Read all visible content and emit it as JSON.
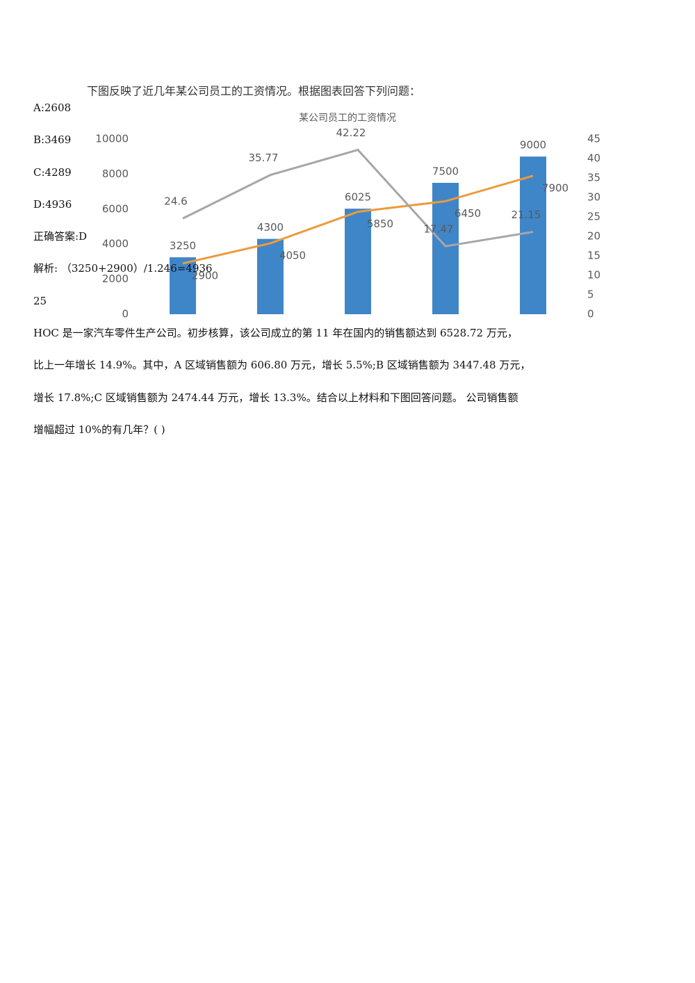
{
  "options": [
    "A:2608",
    "B:3469",
    "C:4289",
    "D:4936"
  ],
  "answer": "正确答案:D",
  "analysis": "解析: （3250+2900）/1.246=4936",
  "question_number": "25",
  "paragraph_lines": [
    "HOC 是一家汽车零件生产公司。初步核算，该公司成立的第 11 年在国内的销售额达到 6528.72 万元，",
    "比上一年增长 14.9%。其中，A 区域销售额为 606.80 万元，增长 5.5%;B 区域销售额为 3447.48 万元，",
    "增长 17.8%;C 区域销售额为 2474.44 万元，增长 13.3%。结合以上材料和下图回答问题。 公司销售额",
    "增幅超过 10%的有几年？( )"
  ],
  "chart_data": {
    "type": "bar-line",
    "header": "下图反映了近几年某公司员工的工资情况。根据图表回答下列问题：",
    "title": "某公司员工的工资情况",
    "categories": [
      null,
      null,
      null,
      null,
      null
    ],
    "series": [
      {
        "type": "bar",
        "color": "#3f86c8",
        "values": [
          3250,
          4300,
          6025,
          7500,
          9000
        ]
      },
      {
        "type": "line",
        "color": "#ed9a3c",
        "values": [
          2900,
          4050,
          5850,
          6450,
          7900
        ]
      },
      {
        "type": "line",
        "color": "#a6a6a6",
        "axis": "y2",
        "values": [
          24.6,
          35.77,
          42.22,
          17.47,
          21.15
        ]
      }
    ],
    "ylim": [
      0,
      10000
    ],
    "yticks": [
      0,
      2000,
      4000,
      6000,
      8000,
      10000
    ],
    "y2lim": [
      0,
      45
    ],
    "y2ticks": [
      0,
      5,
      10,
      15,
      20,
      25,
      30,
      35,
      40,
      45
    ]
  }
}
